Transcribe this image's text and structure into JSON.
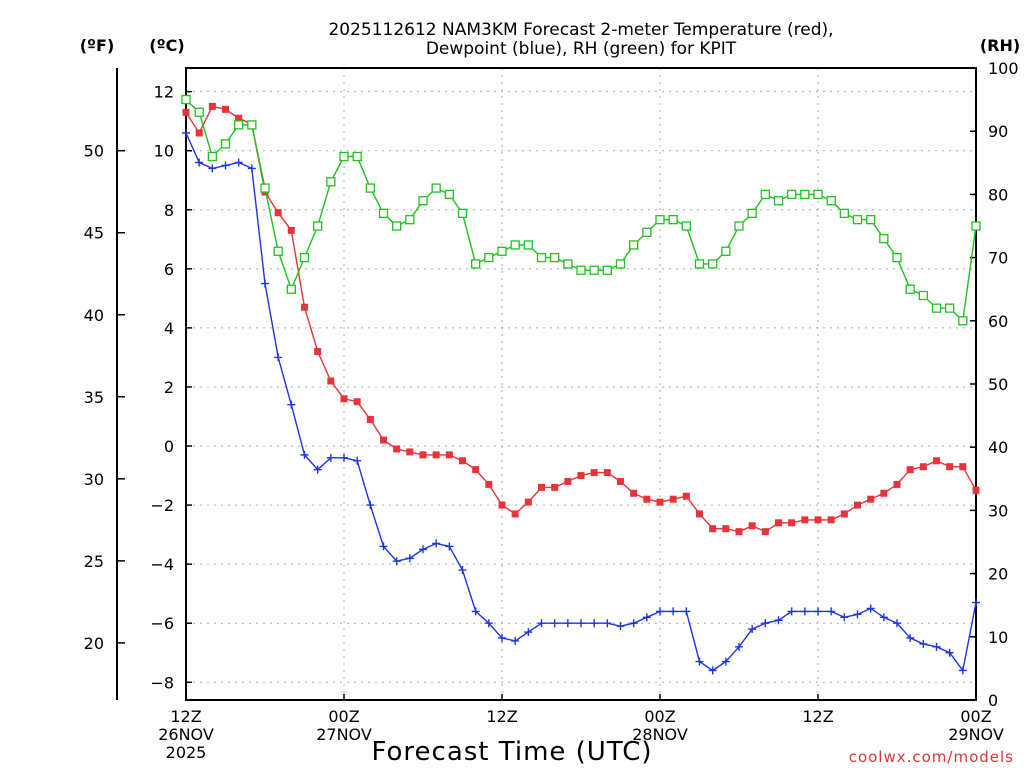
{
  "chart_data": {
    "type": "line",
    "title_lines": [
      "2025112612 NAM3KM Forecast 2-meter Temperature (red),",
      "Dewpoint (blue), RH (green) for KPIT"
    ],
    "units": {
      "fahrenheit": "(ºF)",
      "celsius": "(ºC)",
      "rh": "(RH)"
    },
    "xlabel": "Forecast Time (UTC)",
    "credit": "coolwx.com/models",
    "xlim": [
      0,
      60
    ],
    "x_ticks": [
      {
        "x": 0,
        "lines": [
          "12Z",
          "26NOV",
          "2025"
        ]
      },
      {
        "x": 12,
        "lines": [
          "00Z",
          "27NOV"
        ]
      },
      {
        "x": 24,
        "lines": [
          "12Z"
        ]
      },
      {
        "x": 36,
        "lines": [
          "00Z",
          "28NOV"
        ]
      },
      {
        "x": 48,
        "lines": [
          "12Z"
        ]
      },
      {
        "x": 60,
        "lines": [
          "00Z",
          "29NOV"
        ]
      }
    ],
    "celsius_axis": {
      "ylim": [
        -8.6,
        12.8
      ],
      "ticks": [
        "12",
        "10",
        "8",
        "6",
        "4",
        "2",
        "0",
        "−2",
        "−4",
        "−6",
        "−8"
      ],
      "tick_values": [
        12,
        10,
        8,
        6,
        4,
        2,
        0,
        -2,
        -4,
        -6,
        -8
      ]
    },
    "fahrenheit_axis": {
      "ticks": [
        "50",
        "45",
        "40",
        "35",
        "30",
        "25",
        "20"
      ],
      "tick_values": [
        50,
        45,
        40,
        35,
        30,
        25,
        20
      ]
    },
    "rh_axis": {
      "ylim": [
        0,
        100
      ],
      "ticks": [
        "100",
        "90",
        "80",
        "70",
        "60",
        "50",
        "40",
        "30",
        "20",
        "10",
        "0"
      ],
      "tick_values": [
        100,
        90,
        80,
        70,
        60,
        50,
        40,
        30,
        20,
        10,
        0
      ]
    },
    "grid": true,
    "series": [
      {
        "name": "2-meter Temperature",
        "unit": "C",
        "color": "#e8333a",
        "marker": "filled-square",
        "x": [
          0,
          1,
          2,
          3,
          4,
          5,
          6,
          7,
          8,
          9,
          10,
          11,
          12,
          13,
          14,
          15,
          16,
          17,
          18,
          19,
          20,
          21,
          22,
          23,
          24,
          25,
          26,
          27,
          28,
          29,
          30,
          31,
          32,
          33,
          34,
          35,
          36,
          37,
          38,
          39,
          40,
          41,
          42,
          43,
          44,
          45,
          46,
          47,
          48,
          49,
          50,
          51,
          52,
          53,
          54,
          55,
          56,
          57,
          58,
          59,
          60
        ],
        "values": [
          11.3,
          10.6,
          11.5,
          11.4,
          11.1,
          10.9,
          8.6,
          7.9,
          7.3,
          4.7,
          3.2,
          2.2,
          1.6,
          1.5,
          0.9,
          0.2,
          -0.1,
          -0.2,
          -0.3,
          -0.3,
          -0.3,
          -0.5,
          -0.8,
          -1.3,
          -2.0,
          -2.3,
          -1.9,
          -1.4,
          -1.4,
          -1.2,
          -1.0,
          -0.9,
          -0.9,
          -1.2,
          -1.6,
          -1.8,
          -1.9,
          -1.8,
          -1.7,
          -2.3,
          -2.8,
          -2.8,
          -2.9,
          -2.7,
          -2.9,
          -2.6,
          -2.6,
          -2.5,
          -2.5,
          -2.5,
          -2.3,
          -2.0,
          -1.8,
          -1.6,
          -1.3,
          -0.8,
          -0.7,
          -0.5,
          -0.7,
          -0.7,
          -1.5
        ]
      },
      {
        "name": "Dewpoint",
        "unit": "C",
        "color": "#1c35e8",
        "marker": "plus",
        "x": [
          0,
          1,
          2,
          3,
          4,
          5,
          6,
          7,
          8,
          9,
          10,
          11,
          12,
          13,
          14,
          15,
          16,
          17,
          18,
          19,
          20,
          21,
          22,
          23,
          24,
          25,
          26,
          27,
          28,
          29,
          30,
          31,
          32,
          33,
          34,
          35,
          36,
          37,
          38,
          39,
          40,
          41,
          42,
          43,
          44,
          45,
          46,
          47,
          48,
          49,
          50,
          51,
          52,
          53,
          54,
          55,
          56,
          57,
          58,
          59,
          60
        ],
        "values": [
          10.6,
          9.6,
          9.4,
          9.5,
          9.6,
          9.4,
          5.5,
          3.0,
          1.4,
          -0.3,
          -0.8,
          -0.4,
          -0.4,
          -0.5,
          -2.0,
          -3.4,
          -3.9,
          -3.8,
          -3.5,
          -3.3,
          -3.4,
          -4.2,
          -5.6,
          -6.0,
          -6.5,
          -6.6,
          -6.3,
          -6.0,
          -6.0,
          -6.0,
          -6.0,
          -6.0,
          -6.0,
          -6.1,
          -6.0,
          -5.8,
          -5.6,
          -5.6,
          -5.6,
          -7.3,
          -7.6,
          -7.3,
          -6.8,
          -6.2,
          -6.0,
          -5.9,
          -5.6,
          -5.6,
          -5.6,
          -5.6,
          -5.8,
          -5.7,
          -5.5,
          -5.8,
          -6.0,
          -6.5,
          -6.7,
          -6.8,
          -7.0,
          -7.6,
          -5.3
        ]
      },
      {
        "name": "RH",
        "unit": "%",
        "color": "#1fc21f",
        "marker": "open-square",
        "x": [
          0,
          1,
          2,
          3,
          4,
          5,
          6,
          7,
          8,
          9,
          10,
          11,
          12,
          13,
          14,
          15,
          16,
          17,
          18,
          19,
          20,
          21,
          22,
          23,
          24,
          25,
          26,
          27,
          28,
          29,
          30,
          31,
          32,
          33,
          34,
          35,
          36,
          37,
          38,
          39,
          40,
          41,
          42,
          43,
          44,
          45,
          46,
          47,
          48,
          49,
          50,
          51,
          52,
          53,
          54,
          55,
          56,
          57,
          58,
          59,
          60
        ],
        "values": [
          95,
          93,
          86,
          88,
          91,
          91,
          81,
          71,
          65,
          70,
          75,
          82,
          86,
          86,
          81,
          77,
          75,
          76,
          79,
          81,
          80,
          77,
          69,
          70,
          71,
          72,
          72,
          70,
          70,
          69,
          68,
          68,
          68,
          69,
          72,
          74,
          76,
          76,
          75,
          69,
          69,
          71,
          75,
          77,
          80,
          79,
          80,
          80,
          80,
          79,
          77,
          76,
          76,
          73,
          70,
          65,
          64,
          62,
          62,
          60,
          75
        ]
      }
    ]
  }
}
